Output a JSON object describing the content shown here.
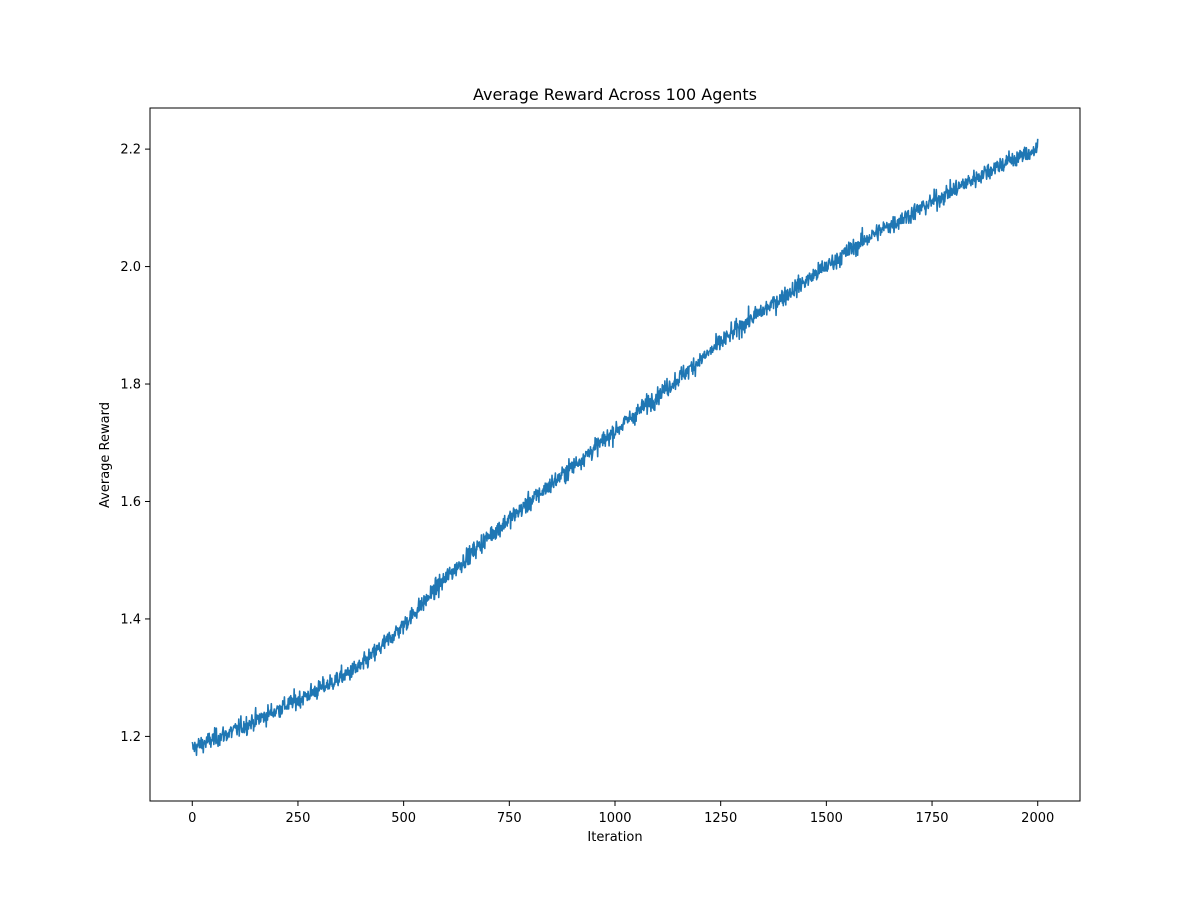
{
  "chart_data": {
    "type": "line",
    "title": "Average Reward Across 100 Agents",
    "xlabel": "Iteration",
    "ylabel": "Average Reward",
    "xlim": [
      -100,
      2100
    ],
    "ylim": [
      1.09,
      2.27
    ],
    "xticks": [
      0,
      250,
      500,
      750,
      1000,
      1250,
      1500,
      1750,
      2000
    ],
    "xtick_labels": [
      "0",
      "250",
      "500",
      "750",
      "1000",
      "1250",
      "1500",
      "1750",
      "2000"
    ],
    "yticks": [
      1.2,
      1.4,
      1.6,
      1.8,
      2.0,
      2.2
    ],
    "ytick_labels": [
      "1.2",
      "1.4",
      "1.6",
      "1.8",
      "2.0",
      "2.2"
    ],
    "grid": false,
    "legend": "none",
    "series": [
      {
        "color": "#1f77b4",
        "x": [
          0,
          100,
          200,
          300,
          400,
          500,
          600,
          700,
          800,
          900,
          1000,
          1100,
          1200,
          1300,
          1400,
          1500,
          1600,
          1700,
          1800,
          1900,
          2000
        ],
        "y": [
          1.18,
          1.21,
          1.245,
          1.28,
          1.32,
          1.39,
          1.47,
          1.54,
          1.6,
          1.66,
          1.72,
          1.78,
          1.84,
          1.9,
          1.95,
          2.0,
          2.05,
          2.09,
          2.13,
          2.17,
          2.2
        ],
        "noise_amplitude": 0.02
      }
    ]
  }
}
